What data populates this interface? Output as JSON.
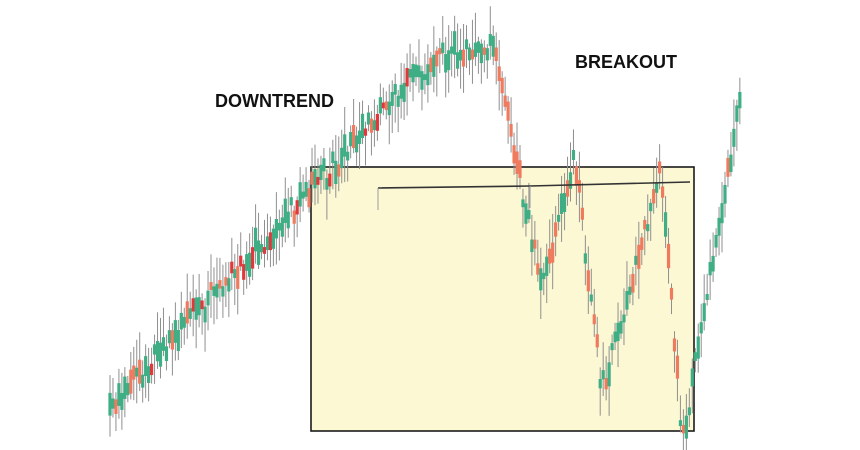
{
  "chart_data": {
    "type": "candlestick",
    "title": "",
    "xlabel": "",
    "ylabel": "",
    "axes_visible": false,
    "grid": false,
    "annotations": [
      {
        "id": "downtrend",
        "text": "DOWNTREND"
      },
      {
        "id": "breakout",
        "text": "BREAKOUT"
      }
    ],
    "consolidation_box": {
      "fill": "#fcf8d4",
      "stroke": "#1a1a1a"
    },
    "resistance_line": {
      "stroke": "#333333",
      "touch_points": 3
    },
    "colors": {
      "up": "#3fae84",
      "down": "#ef7a5d",
      "strong_down": "#e0383b",
      "wick": "#8f8f8f"
    },
    "path_points": [
      [
        0,
        100
      ],
      [
        60,
        8
      ],
      [
        71,
        4
      ],
      [
        80,
        70
      ],
      [
        86,
        33
      ],
      [
        91,
        96
      ],
      [
        97,
        66
      ],
      [
        102,
        38
      ],
      [
        106,
        110
      ],
      [
        117,
        16
      ]
    ],
    "segments": [
      {
        "phase": "downtrend",
        "from_pct": 0,
        "to_pct": 60
      },
      {
        "phase": "range",
        "from_pct": 60,
        "to_pct": 106
      },
      {
        "phase": "breakout",
        "from_pct": 106,
        "to_pct": 117
      }
    ]
  }
}
